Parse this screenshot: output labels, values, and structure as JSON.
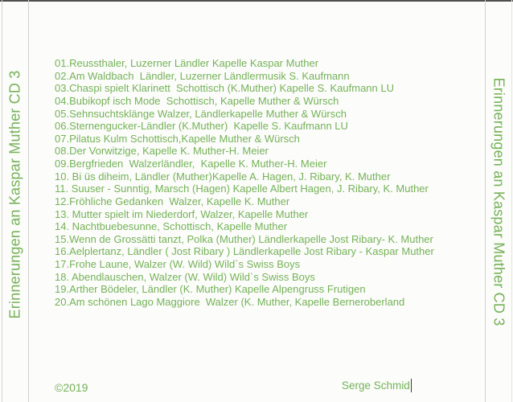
{
  "panel": {
    "left_spine_title": "Erinnerungen an Kaspar Muther CD 3",
    "right_spine_title": "Erinnerungen an Kaspar Muther CD 3"
  },
  "tracks": [
    "01.Reussthaler, Luzerner Ländler Kapelle Kaspar Muther",
    "02.Am Waldbach  Ländler, Luzerner Ländlermusik S. Kaufmann",
    "03.Chaspi spielt Klarinett  Schottisch (K.Muther) Kapelle S. Kaufmann LU",
    "04.Bubikopf isch Mode  Schottisch, Kapelle Muther & Würsch",
    "05.Sehnsuchtsklänge Walzer, Ländlerkapelle Muther & Würsch",
    "06.Sternengucker-Ländler (K.Muther)  Kapelle S. Kaufmann LU",
    "07.Pilatus Kulm Schottisch,Kapelle Muther & Würsch",
    "08.Der Vorwitzige, Kapelle K. Muther-H. Meier",
    "09.Bergfrieden  Walzerländler,  Kapelle K. Muther-H. Meier",
    "10. Bi üs diheim, Ländler (Muther)Kapelle A. Hagen, J. Ribary, K. Muther",
    "11. Suuser - Sunntig, Marsch (Hagen) Kapelle Albert Hagen, J. Ribary, K. Muther",
    "12.Fröhliche Gedanken  Walzer, Kapelle K. Muther",
    "13. Mutter spielt im Niederdorf, Walzer, Kapelle Muther",
    "14. Nachtbuebesunne, Schottisch, Kapelle Muther",
    "15.Wenn de Grossätti tanzt, Polka (Muther) Ländlerkapelle Jost Ribary- K. Muther",
    "16.Aelplertanz, Ländler ( Jost Ribary ) Ländlerkapelle Jost Ribary - Kaspar Muther",
    "17.Frohe Laune, Walzer (W. Wild) Wild`s Swiss Boys",
    "18. Abendlauschen, Walzer (W. Wild) Wild`s Swiss Boys",
    "19.Arther Bödeler, Ländler (K. Muther) Kapelle Alpengruss Frutigen",
    "20.Am schönen Lago Maggiore  Walzer (K. Muther, Kapelle Berneroberland"
  ],
  "footer": {
    "copyright": "©2019",
    "credit": "Serge Schmid"
  },
  "colors": {
    "text_green": "#74b258",
    "fold_line_gray": "#d2d2cf",
    "top_edge_dark": "#4f4f4f",
    "caret_dark": "#3b3b3b",
    "background": "#fcfcfa"
  }
}
